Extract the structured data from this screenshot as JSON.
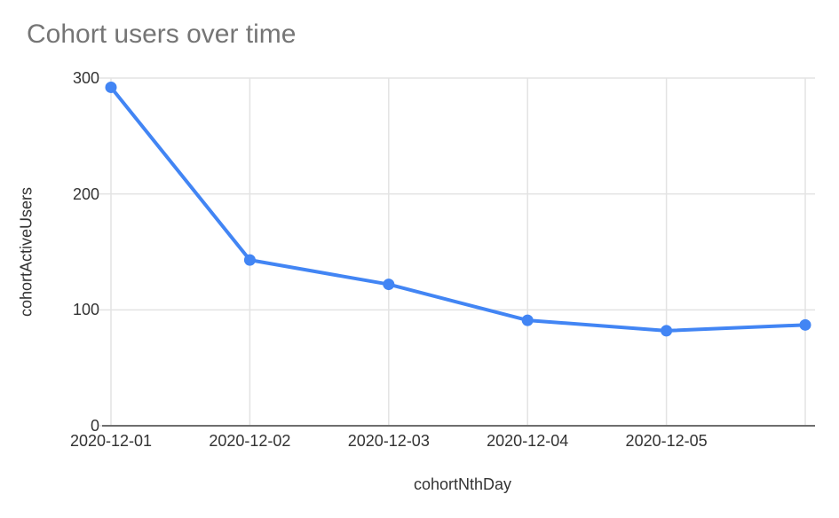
{
  "page": {
    "background": "#ffffff"
  },
  "chart_data": {
    "type": "line",
    "title": "Cohort users over time",
    "xlabel": "cohortNthDay",
    "ylabel": "cohortActiveUsers",
    "x_tick_labels": [
      "2020-12-01",
      "2020-12-02",
      "2020-12-03",
      "2020-12-04",
      "2020-12-05"
    ],
    "y_ticks": [
      0,
      100,
      200,
      300
    ],
    "y_tick_labels": [
      "300",
      "200",
      "100",
      "0"
    ],
    "ylim": [
      0,
      300
    ],
    "num_points": 6,
    "grid": true,
    "legend": "none",
    "series": [
      {
        "name": "cohortActiveUsers",
        "color": "#4285f4",
        "values": [
          292,
          143,
          122,
          91,
          82,
          87
        ]
      }
    ],
    "colors": {
      "title": "#757575",
      "axis_label": "#333333",
      "gridline": "#e3e3e3",
      "axis_line": "#6e6e6e",
      "line": "#4285f4",
      "point_fill": "#4285f4"
    }
  }
}
